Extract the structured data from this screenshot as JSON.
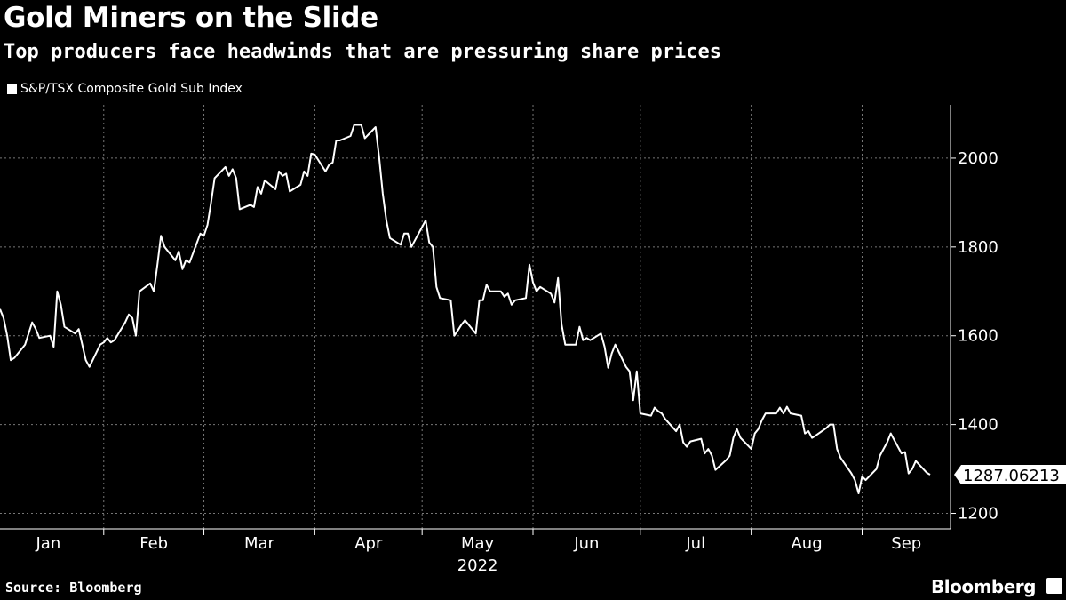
{
  "title": "Gold Miners on the Slide",
  "subtitle": "Top producers face headwinds that are pressuring share prices",
  "source": "Source: Bloomberg",
  "brand": "Bloomberg",
  "chart_data": {
    "type": "line",
    "series": [
      {
        "name": "S&P/TSX Composite Gold Sub Index",
        "color": "#ffffff",
        "x": [
          "2022-01-03",
          "2022-01-04",
          "2022-01-05",
          "2022-01-06",
          "2022-01-07",
          "2022-01-10",
          "2022-01-11",
          "2022-01-12",
          "2022-01-13",
          "2022-01-14",
          "2022-01-17",
          "2022-01-18",
          "2022-01-19",
          "2022-01-20",
          "2022-01-21",
          "2022-01-24",
          "2022-01-25",
          "2022-01-26",
          "2022-01-27",
          "2022-01-28",
          "2022-01-31",
          "2022-02-01",
          "2022-02-02",
          "2022-02-03",
          "2022-02-04",
          "2022-02-07",
          "2022-02-08",
          "2022-02-09",
          "2022-02-10",
          "2022-02-11",
          "2022-02-14",
          "2022-02-15",
          "2022-02-16",
          "2022-02-17",
          "2022-02-18",
          "2022-02-21",
          "2022-02-22",
          "2022-02-23",
          "2022-02-24",
          "2022-02-25",
          "2022-02-28",
          "2022-03-01",
          "2022-03-02",
          "2022-03-03",
          "2022-03-04",
          "2022-03-07",
          "2022-03-08",
          "2022-03-09",
          "2022-03-10",
          "2022-03-11",
          "2022-03-14",
          "2022-03-15",
          "2022-03-16",
          "2022-03-17",
          "2022-03-18",
          "2022-03-21",
          "2022-03-22",
          "2022-03-23",
          "2022-03-24",
          "2022-03-25",
          "2022-03-28",
          "2022-03-29",
          "2022-03-30",
          "2022-03-31",
          "2022-04-01",
          "2022-04-04",
          "2022-04-05",
          "2022-04-06",
          "2022-04-07",
          "2022-04-08",
          "2022-04-11",
          "2022-04-12",
          "2022-04-13",
          "2022-04-14",
          "2022-04-15",
          "2022-04-18",
          "2022-04-19",
          "2022-04-20",
          "2022-04-21",
          "2022-04-22",
          "2022-04-25",
          "2022-04-26",
          "2022-04-27",
          "2022-04-28",
          "2022-04-29",
          "2022-05-02",
          "2022-05-03",
          "2022-05-04",
          "2022-05-05",
          "2022-05-06",
          "2022-05-09",
          "2022-05-10",
          "2022-05-11",
          "2022-05-12",
          "2022-05-13",
          "2022-05-16",
          "2022-05-17",
          "2022-05-18",
          "2022-05-19",
          "2022-05-20",
          "2022-05-23",
          "2022-05-24",
          "2022-05-25",
          "2022-05-26",
          "2022-05-27",
          "2022-05-30",
          "2022-05-31",
          "2022-06-01",
          "2022-06-02",
          "2022-06-03",
          "2022-06-06",
          "2022-06-07",
          "2022-06-08",
          "2022-06-09",
          "2022-06-10",
          "2022-06-13",
          "2022-06-14",
          "2022-06-15",
          "2022-06-16",
          "2022-06-17",
          "2022-06-20",
          "2022-06-21",
          "2022-06-22",
          "2022-06-23",
          "2022-06-24",
          "2022-06-27",
          "2022-06-28",
          "2022-06-29",
          "2022-06-30",
          "2022-07-01",
          "2022-07-04",
          "2022-07-05",
          "2022-07-06",
          "2022-07-07",
          "2022-07-08",
          "2022-07-11",
          "2022-07-12",
          "2022-07-13",
          "2022-07-14",
          "2022-07-15",
          "2022-07-18",
          "2022-07-19",
          "2022-07-20",
          "2022-07-21",
          "2022-07-22",
          "2022-07-25",
          "2022-07-26",
          "2022-07-27",
          "2022-07-28",
          "2022-07-29",
          "2022-08-01",
          "2022-08-02",
          "2022-08-03",
          "2022-08-04",
          "2022-08-05",
          "2022-08-08",
          "2022-08-09",
          "2022-08-10",
          "2022-08-11",
          "2022-08-12",
          "2022-08-15",
          "2022-08-16",
          "2022-08-17",
          "2022-08-18",
          "2022-08-19",
          "2022-08-22",
          "2022-08-23",
          "2022-08-24",
          "2022-08-25",
          "2022-08-26",
          "2022-08-29",
          "2022-08-30",
          "2022-08-31",
          "2022-09-01",
          "2022-09-02",
          "2022-09-05",
          "2022-09-06",
          "2022-09-07",
          "2022-09-08",
          "2022-09-09",
          "2022-09-12",
          "2022-09-13",
          "2022-09-14",
          "2022-09-15",
          "2022-09-16",
          "2022-09-19",
          "2022-09-20"
        ],
        "values": [
          1660,
          1640,
          1600,
          1545,
          1550,
          1580,
          1605,
          1630,
          1615,
          1595,
          1600,
          1575,
          1700,
          1670,
          1620,
          1605,
          1615,
          1580,
          1545,
          1530,
          1580,
          1585,
          1595,
          1585,
          1590,
          1630,
          1648,
          1640,
          1600,
          1700,
          1718,
          1700,
          1760,
          1825,
          1800,
          1770,
          1790,
          1750,
          1770,
          1765,
          1830,
          1825,
          1850,
          1900,
          1955,
          1980,
          1960,
          1975,
          1955,
          1885,
          1895,
          1890,
          1935,
          1920,
          1950,
          1930,
          1970,
          1960,
          1965,
          1925,
          1940,
          1970,
          1960,
          2010,
          2008,
          1970,
          1985,
          1990,
          2040,
          2040,
          2050,
          2075,
          2075,
          2075,
          2045,
          2070,
          2000,
          1920,
          1860,
          1820,
          1805,
          1830,
          1830,
          1800,
          1815,
          1860,
          1810,
          1800,
          1710,
          1685,
          1680,
          1600,
          1612,
          1625,
          1635,
          1605,
          1680,
          1680,
          1715,
          1700,
          1700,
          1688,
          1695,
          1670,
          1680,
          1685,
          1760,
          1720,
          1700,
          1710,
          1695,
          1675,
          1730,
          1625,
          1580,
          1580,
          1620,
          1590,
          1595,
          1590,
          1605,
          1575,
          1528,
          1560,
          1580,
          1530,
          1520,
          1455,
          1520,
          1425,
          1420,
          1438,
          1430,
          1425,
          1412,
          1385,
          1400,
          1360,
          1350,
          1362,
          1368,
          1335,
          1345,
          1330,
          1298,
          1320,
          1330,
          1370,
          1390,
          1370,
          1345,
          1380,
          1390,
          1410,
          1425,
          1425,
          1438,
          1425,
          1440,
          1425,
          1420,
          1380,
          1385,
          1370,
          1375,
          1392,
          1400,
          1400,
          1345,
          1325,
          1290,
          1275,
          1245,
          1283,
          1275,
          1300,
          1330,
          1345,
          1360,
          1380,
          1335,
          1338,
          1290,
          1300,
          1318,
          1292,
          1287.06213
        ]
      }
    ],
    "x_ticks": [
      "Jan",
      "Feb",
      "Mar",
      "Apr",
      "May",
      "Jun",
      "Jul",
      "Aug",
      "Sep"
    ],
    "x_year_label": "2022",
    "y_ticks": [
      1200,
      1400,
      1600,
      1800,
      2000
    ],
    "ylim": [
      1165,
      2120
    ],
    "last_value_label": "1287.06213",
    "grid": true,
    "legend_position": "top-left"
  }
}
